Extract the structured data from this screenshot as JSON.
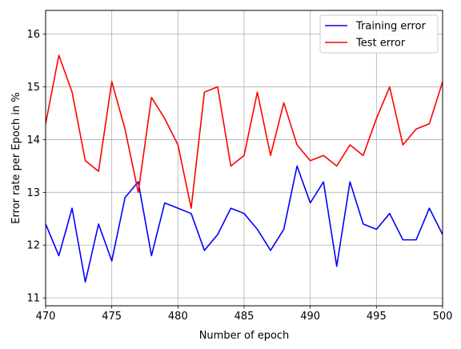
{
  "chart_data": {
    "type": "line",
    "title": "",
    "xlabel": "Number of epoch",
    "ylabel": "Error rate per Epoch in %",
    "xlim": [
      470,
      500
    ],
    "ylim": [
      10.85,
      16.45
    ],
    "xticks": [
      470,
      475,
      480,
      485,
      490,
      495,
      500
    ],
    "yticks": [
      11,
      12,
      13,
      14,
      15,
      16
    ],
    "grid": true,
    "legend_position": "top-right",
    "x": [
      470,
      471,
      472,
      473,
      474,
      475,
      476,
      477,
      478,
      479,
      480,
      481,
      482,
      483,
      484,
      485,
      486,
      487,
      488,
      489,
      490,
      491,
      492,
      493,
      494,
      495,
      496,
      497,
      498,
      499,
      500
    ],
    "series": [
      {
        "name": "Training error",
        "color": "#0000ff",
        "values": [
          12.4,
          11.8,
          12.7,
          11.3,
          12.4,
          11.7,
          12.9,
          13.2,
          11.8,
          12.8,
          12.7,
          12.6,
          11.9,
          12.2,
          12.7,
          12.6,
          12.3,
          11.9,
          12.3,
          13.5,
          12.8,
          13.2,
          11.6,
          13.2,
          12.4,
          12.3,
          12.6,
          12.1,
          12.1,
          12.7,
          12.2
        ]
      },
      {
        "name": "Test error",
        "color": "#ff0000",
        "values": [
          14.3,
          15.6,
          14.9,
          13.6,
          13.4,
          15.1,
          14.2,
          13.0,
          14.8,
          14.4,
          13.9,
          12.7,
          14.9,
          15.0,
          13.5,
          13.7,
          14.9,
          13.7,
          14.7,
          13.9,
          13.6,
          13.7,
          13.5,
          13.9,
          13.7,
          14.4,
          15.0,
          13.9,
          14.2,
          14.3,
          15.1
        ]
      }
    ]
  }
}
